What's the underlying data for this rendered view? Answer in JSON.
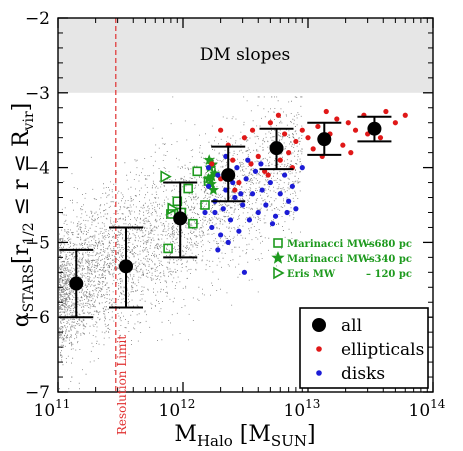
{
  "chart_data": {
    "type": "scatter",
    "x_scale": "log",
    "xlim": [
      100000000000.0,
      100000000000000.0
    ],
    "ylim": [
      -7,
      -2
    ],
    "x_ticks": [
      {
        "value": 100000000000.0,
        "base": "10",
        "exp": "11"
      },
      {
        "value": 1000000000000.0,
        "base": "10",
        "exp": "12"
      },
      {
        "value": 10000000000000.0,
        "base": "10",
        "exp": "13"
      },
      {
        "value": 100000000000000.0,
        "base": "10",
        "exp": "14"
      }
    ],
    "y_ticks": [
      {
        "value": -7,
        "label": "−7"
      },
      {
        "value": -6,
        "label": "−6"
      },
      {
        "value": -5,
        "label": "−5"
      },
      {
        "value": -4,
        "label": "−4"
      },
      {
        "value": -3,
        "label": "−3"
      },
      {
        "value": -2,
        "label": "−2"
      }
    ],
    "xlabel": {
      "main": "M",
      "sub": "Halo",
      "unit_open": " [M",
      "unit_sub": "SUN",
      "unit_close": "]"
    },
    "ylabel": {
      "main": "α",
      "sub": "STARS",
      "bracket": "[r",
      "sub2": "1/2",
      "middle": " ≤ r ≤ R",
      "sub3": "vir",
      "close": "]"
    },
    "band": {
      "label": "DM slopes",
      "y_from": -3,
      "y_to": -2,
      "color": "#e6e6e6"
    },
    "resolution_limit": {
      "x": 290000000000.0,
      "label": "Resolution Limit",
      "color": "#e03030"
    },
    "series": [
      {
        "name": "all",
        "color": "#000000",
        "points": [
          {
            "x": 140000000000.0,
            "y": -5.55,
            "ylo": -6.0,
            "yhi": -5.1
          },
          {
            "x": 350000000000.0,
            "y": -5.32,
            "ylo": -5.87,
            "yhi": -4.8
          },
          {
            "x": 950000000000.0,
            "y": -4.68,
            "ylo": -5.2,
            "yhi": -4.2
          },
          {
            "x": 2300000000000.0,
            "y": -4.1,
            "ylo": -4.45,
            "yhi": -3.72
          },
          {
            "x": 5600000000000.0,
            "y": -3.74,
            "ylo": -4.02,
            "yhi": -3.48
          },
          {
            "x": 13500000000000.0,
            "y": -3.62,
            "ylo": -3.83,
            "yhi": -3.4
          },
          {
            "x": 34000000000000.0,
            "y": -3.48,
            "ylo": -3.65,
            "yhi": -3.32
          }
        ]
      },
      {
        "name": "ellipticals",
        "color": "#e01818",
        "points": [
          [
            2000000000000.0,
            -3.5
          ],
          [
            2300000000000.0,
            -3.7
          ],
          [
            2500000000000.0,
            -3.9
          ],
          [
            2800000000000.0,
            -4.2
          ],
          [
            3100000000000.0,
            -3.6
          ],
          [
            3500000000000.0,
            -3.95
          ],
          [
            4000000000000.0,
            -3.85
          ],
          [
            4500000000000.0,
            -4.05
          ],
          [
            5000000000000.0,
            -3.4
          ],
          [
            5300000000000.0,
            -3.7
          ],
          [
            6000000000000.0,
            -3.9
          ],
          [
            6500000000000.0,
            -3.55
          ],
          [
            7000000000000.0,
            -3.8
          ],
          [
            8000000000000.0,
            -3.65
          ],
          [
            9000000000000.0,
            -3.5
          ],
          [
            10000000000000.0,
            -3.6
          ],
          [
            11000000000000.0,
            -3.75
          ],
          [
            12000000000000.0,
            -3.45
          ],
          [
            13000000000000.0,
            -3.85
          ],
          [
            15000000000000.0,
            -3.55
          ],
          [
            17000000000000.0,
            -3.35
          ],
          [
            19000000000000.0,
            -3.7
          ],
          [
            21000000000000.0,
            -3.4
          ],
          [
            24000000000000.0,
            -3.5
          ],
          [
            28000000000000.0,
            -3.3
          ],
          [
            32000000000000.0,
            -3.45
          ],
          [
            38000000000000.0,
            -3.6
          ],
          [
            42000000000000.0,
            -3.25
          ],
          [
            50000000000000.0,
            -3.4
          ],
          [
            60000000000000.0,
            -3.3
          ],
          [
            1700000000000.0,
            -3.95
          ],
          [
            2600000000000.0,
            -4.3
          ],
          [
            3600000000000.0,
            -3.5
          ],
          [
            4800000000000.0,
            -4.1
          ],
          [
            7500000000000.0,
            -4.0
          ],
          [
            14000000000000.0,
            -3.25
          ],
          [
            22000000000000.0,
            -3.8
          ],
          [
            30000000000000.0,
            -3.55
          ],
          [
            2000000000000.0,
            -4.15
          ],
          [
            5800000000000.0,
            -3.3
          ]
        ]
      },
      {
        "name": "disks",
        "color": "#1c1cd6",
        "points": [
          [
            1500000000000.0,
            -4.6
          ],
          [
            1600000000000.0,
            -4.25
          ],
          [
            1700000000000.0,
            -4.8
          ],
          [
            1800000000000.0,
            -4.45
          ],
          [
            1900000000000.0,
            -4.1
          ],
          [
            2000000000000.0,
            -4.9
          ],
          [
            2100000000000.0,
            -4.55
          ],
          [
            2200000000000.0,
            -4.3
          ],
          [
            2300000000000.0,
            -5.0
          ],
          [
            2400000000000.0,
            -4.7
          ],
          [
            2500000000000.0,
            -4.2
          ],
          [
            2600000000000.0,
            -4.4
          ],
          [
            2800000000000.0,
            -4.85
          ],
          [
            3000000000000.0,
            -4.5
          ],
          [
            3200000000000.0,
            -4.15
          ],
          [
            3400000000000.0,
            -4.7
          ],
          [
            3600000000000.0,
            -4.35
          ],
          [
            3800000000000.0,
            -4.05
          ],
          [
            4000000000000.0,
            -4.6
          ],
          [
            4300000000000.0,
            -4.3
          ],
          [
            4600000000000.0,
            -4.5
          ],
          [
            5000000000000.0,
            -4.2
          ],
          [
            5500000000000.0,
            -4.65
          ],
          [
            6000000000000.0,
            -4.35
          ],
          [
            6500000000000.0,
            -4.1
          ],
          [
            7000000000000.0,
            -4.45
          ],
          [
            7500000000000.0,
            -4.25
          ],
          [
            8000000000000.0,
            -4.55
          ],
          [
            9000000000000.0,
            -4.0
          ],
          [
            3100000000000.0,
            -5.4
          ],
          [
            1900000000000.0,
            -5.1
          ],
          [
            2700000000000.0,
            -4.0
          ],
          [
            4200000000000.0,
            -3.95
          ],
          [
            1600000000000.0,
            -4.0
          ],
          [
            2900000000000.0,
            -4.35
          ],
          [
            5200000000000.0,
            -4.75
          ],
          [
            3300000000000.0,
            -3.9
          ],
          [
            2200000000000.0,
            -3.85
          ],
          [
            6800000000000.0,
            -4.6
          ],
          [
            1800000000000.0,
            -4.6
          ]
        ]
      }
    ],
    "green_points": {
      "color": "#1e9a1e",
      "squares": [
        [
          760000000000.0,
          -5.08
        ],
        [
          800000000000.0,
          -4.62
        ],
        [
          900000000000.0,
          -4.45
        ],
        [
          1100000000000.0,
          -4.28
        ],
        [
          1300000000000.0,
          -4.05
        ],
        [
          1500000000000.0,
          -4.5
        ],
        [
          1600000000000.0,
          -4.18
        ],
        [
          1200000000000.0,
          -4.75
        ],
        [
          970000000000.0,
          -4.6
        ]
      ],
      "stars": [
        [
          1620000000000.0,
          -3.9
        ],
        [
          1650000000000.0,
          -4.0
        ],
        [
          1700000000000.0,
          -4.12
        ],
        [
          1680000000000.0,
          -4.22
        ],
        [
          1750000000000.0,
          -4.3
        ],
        [
          1800000000000.0,
          -4.08
        ],
        [
          1720000000000.0,
          -3.96
        ],
        [
          1600000000000.0,
          -4.15
        ]
      ],
      "triangles": [
        [
          720000000000.0,
          -4.12
        ],
        [
          820000000000.0,
          -4.55
        ]
      ]
    },
    "legend": {
      "position": "bottom-right",
      "items": [
        {
          "label": "all",
          "marker": "big-circle",
          "color": "#000000"
        },
        {
          "label": "ellipticals",
          "marker": "dot",
          "color": "#e01818"
        },
        {
          "label": "disks",
          "marker": "dot",
          "color": "#1c1cd6"
        }
      ]
    },
    "inset_legend": {
      "color": "#1e9a1e",
      "items": [
        {
          "marker": "square",
          "name": "Marinacci MWs",
          "value": "– 680 pc"
        },
        {
          "marker": "star",
          "name": "Marinacci MWs",
          "value": "– 340 pc"
        },
        {
          "marker": "triangle",
          "name": "Eris MW",
          "value": "– 120 pc"
        }
      ]
    },
    "background_cloud": {
      "color": "#555555"
    }
  }
}
